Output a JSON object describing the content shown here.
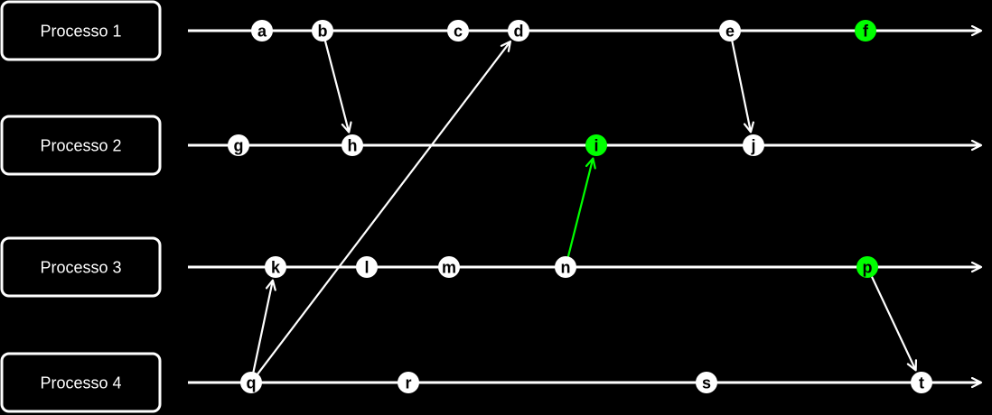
{
  "colors": {
    "background": "#000000",
    "line": "#ffffff",
    "highlight": "#00ff00",
    "event_text": "#000000"
  },
  "processes": [
    {
      "id": "p1",
      "label": "Processo 1"
    },
    {
      "id": "p2",
      "label": "Processo 2"
    },
    {
      "id": "p3",
      "label": "Processo 3"
    },
    {
      "id": "p4",
      "label": "Processo 4"
    }
  ],
  "events": [
    {
      "id": "a",
      "label": "a",
      "process": "p1",
      "order": 1,
      "highlight": false
    },
    {
      "id": "b",
      "label": "b",
      "process": "p1",
      "order": 2,
      "highlight": false
    },
    {
      "id": "c",
      "label": "c",
      "process": "p1",
      "order": 3,
      "highlight": false
    },
    {
      "id": "d",
      "label": "d",
      "process": "p1",
      "order": 4,
      "highlight": false
    },
    {
      "id": "e",
      "label": "e",
      "process": "p1",
      "order": 5,
      "highlight": false
    },
    {
      "id": "f",
      "label": "f",
      "process": "p1",
      "order": 6,
      "highlight": true
    },
    {
      "id": "g",
      "label": "g",
      "process": "p2",
      "order": 1,
      "highlight": false
    },
    {
      "id": "h",
      "label": "h",
      "process": "p2",
      "order": 2,
      "highlight": false
    },
    {
      "id": "i",
      "label": "i",
      "process": "p2",
      "order": 3,
      "highlight": true
    },
    {
      "id": "j",
      "label": "j",
      "process": "p2",
      "order": 4,
      "highlight": false
    },
    {
      "id": "k",
      "label": "k",
      "process": "p3",
      "order": 1,
      "highlight": false
    },
    {
      "id": "l",
      "label": "l",
      "process": "p3",
      "order": 2,
      "highlight": false
    },
    {
      "id": "m",
      "label": "m",
      "process": "p3",
      "order": 3,
      "highlight": false
    },
    {
      "id": "n",
      "label": "n",
      "process": "p3",
      "order": 4,
      "highlight": false
    },
    {
      "id": "p",
      "label": "p",
      "process": "p3",
      "order": 5,
      "highlight": true
    },
    {
      "id": "q",
      "label": "q",
      "process": "p4",
      "order": 1,
      "highlight": false
    },
    {
      "id": "r",
      "label": "r",
      "process": "p4",
      "order": 2,
      "highlight": false
    },
    {
      "id": "s",
      "label": "s",
      "process": "p4",
      "order": 3,
      "highlight": false
    },
    {
      "id": "t",
      "label": "t",
      "process": "p4",
      "order": 4,
      "highlight": false
    }
  ],
  "messages": [
    {
      "from": "b",
      "to": "h",
      "highlight": false
    },
    {
      "from": "e",
      "to": "j",
      "highlight": false
    },
    {
      "from": "q",
      "to": "d",
      "highlight": false
    },
    {
      "from": "q",
      "to": "k",
      "highlight": false
    },
    {
      "from": "n",
      "to": "i",
      "highlight": true
    },
    {
      "from": "p",
      "to": "t",
      "highlight": false
    }
  ]
}
